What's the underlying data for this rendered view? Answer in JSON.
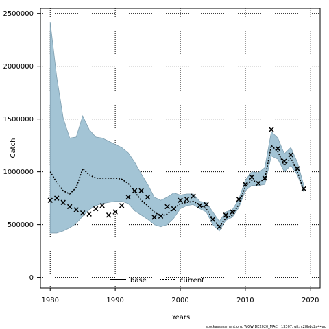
{
  "chart_data": {
    "type": "line",
    "xlabel": "Years",
    "ylabel": "Catch",
    "xlim": [
      1978.5,
      2021.5
    ],
    "ylim": [
      -100000,
      2550000
    ],
    "x_ticks": [
      1980,
      1990,
      2000,
      2010,
      2020
    ],
    "y_ticks": [
      0,
      500000,
      1000000,
      1500000,
      2000000,
      2500000
    ],
    "x_tick_labels": [
      "1980",
      "1990",
      "2000",
      "2010",
      "2020"
    ],
    "y_tick_labels": [
      "0",
      "500000",
      "1000000",
      "1500000",
      "2000000",
      "2500000"
    ],
    "grid": true,
    "legend_position": "bottom-center",
    "legend": [
      {
        "label": "base",
        "style": "solid"
      },
      {
        "label": "current",
        "style": "dotted"
      }
    ],
    "band": {
      "color": "#a3c4d5",
      "years": [
        1980,
        1981,
        1982,
        1983,
        1984,
        1985,
        1986,
        1987,
        1988,
        1989,
        1990,
        1991,
        1992,
        1993,
        1994,
        1995,
        1996,
        1997,
        1998,
        1999,
        2000,
        2001,
        2002,
        2003,
        2004,
        2005,
        2006,
        2007,
        2008,
        2009,
        2010,
        2011,
        2012,
        2013,
        2014,
        2015,
        2016,
        2017,
        2018,
        2019
      ],
      "upper": [
        2420000,
        1900000,
        1510000,
        1320000,
        1330000,
        1530000,
        1400000,
        1330000,
        1320000,
        1290000,
        1260000,
        1230000,
        1180000,
        1090000,
        980000,
        880000,
        760000,
        730000,
        760000,
        800000,
        780000,
        790000,
        790000,
        720000,
        710000,
        620000,
        530000,
        620000,
        640000,
        740000,
        920000,
        1000000,
        990000,
        1040000,
        1380000,
        1320000,
        1170000,
        1230000,
        1090000,
        870000
      ],
      "lower": [
        420000,
        420000,
        440000,
        470000,
        510000,
        580000,
        640000,
        680000,
        700000,
        710000,
        720000,
        720000,
        700000,
        630000,
        590000,
        550000,
        500000,
        480000,
        500000,
        560000,
        650000,
        680000,
        690000,
        650000,
        620000,
        500000,
        440000,
        540000,
        570000,
        660000,
        820000,
        870000,
        870000,
        880000,
        1150000,
        1120000,
        1000000,
        1060000,
        970000,
        810000
      ]
    },
    "series": [
      {
        "name": "current",
        "style": "dotted",
        "x": [
          1980,
          1981,
          1982,
          1983,
          1984,
          1985,
          1986,
          1987,
          1988,
          1989,
          1990,
          1991,
          1992,
          1993,
          1994,
          1995,
          1996,
          1997,
          1998,
          1999,
          2000,
          2001,
          2002,
          2003,
          2004,
          2005,
          2006,
          2007,
          2008,
          2009,
          2010,
          2011,
          2012,
          2013,
          2014,
          2015,
          2016,
          2017,
          2018,
          2019
        ],
        "y": [
          1000000,
          900000,
          820000,
          790000,
          850000,
          1030000,
          970000,
          940000,
          940000,
          940000,
          940000,
          930000,
          890000,
          810000,
          730000,
          680000,
          620000,
          580000,
          600000,
          650000,
          700000,
          710000,
          720000,
          690000,
          650000,
          550000,
          480000,
          560000,
          590000,
          690000,
          860000,
          920000,
          900000,
          930000,
          1250000,
          1190000,
          1060000,
          1130000,
          1000000,
          820000
        ]
      },
      {
        "name": "observed",
        "style": "marker-x",
        "x": [
          1980,
          1981,
          1982,
          1983,
          1984,
          1985,
          1986,
          1987,
          1988,
          1989,
          1990,
          1991,
          1992,
          1993,
          1994,
          1995,
          1996,
          1997,
          1998,
          1999,
          2000,
          2001,
          2002,
          2003,
          2004,
          2005,
          2006,
          2007,
          2008,
          2009,
          2010,
          2011,
          2012,
          2013,
          2014,
          2015,
          2016,
          2017,
          2018,
          2019
        ],
        "y": [
          730000,
          750000,
          710000,
          670000,
          640000,
          610000,
          600000,
          650000,
          680000,
          590000,
          620000,
          680000,
          760000,
          820000,
          820000,
          760000,
          570000,
          580000,
          670000,
          650000,
          730000,
          740000,
          770000,
          680000,
          690000,
          550000,
          480000,
          590000,
          620000,
          740000,
          880000,
          950000,
          890000,
          940000,
          1400000,
          1220000,
          1100000,
          1160000,
          1030000,
          840000
        ]
      }
    ],
    "footer": "stockassessment.org, WGWIDE2020_MAC, r13307, git: c28bdc2a44ad"
  }
}
